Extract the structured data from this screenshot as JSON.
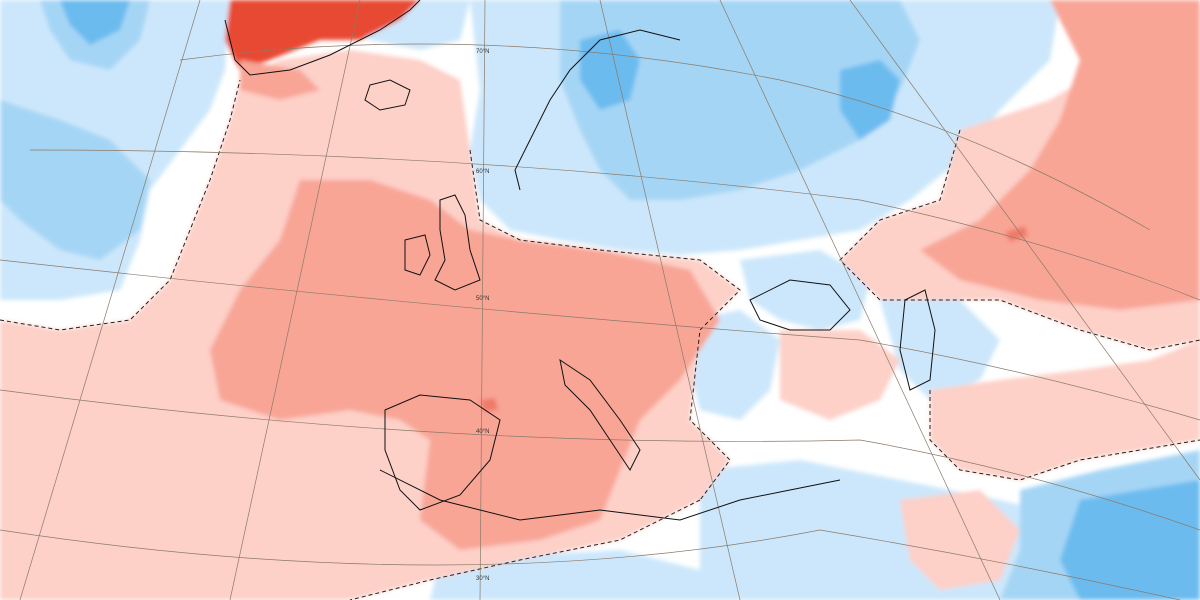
{
  "map": {
    "colors": {
      "background": "#ffffff",
      "warm_light": "#fdd0c8",
      "warm_medium": "#f8a596",
      "warm_strong": "#f07a68",
      "warm_intense": "#e84a32",
      "cool_light": "#cce7fb",
      "cool_medium": "#a5d5f5",
      "cool_strong": "#6cbbef",
      "cool_intense": "#3a9fe6",
      "coastline": "#111111",
      "graticule": "#8a7a6a"
    },
    "latitude_labels": [
      "70°N",
      "60°N",
      "50°N",
      "40°N",
      "30°N"
    ]
  }
}
